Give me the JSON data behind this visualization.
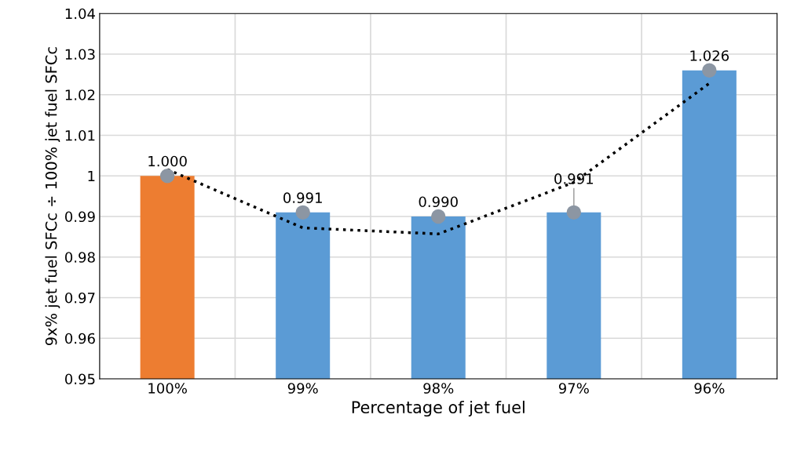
{
  "chart_data": {
    "type": "bar",
    "xlabel": "Percentage of jet fuel",
    "ylabel": "9x% jet fuel SFCc ÷ 100% jet fuel SFCc",
    "categories": [
      "100%",
      "99%",
      "98%",
      "97%",
      "96%"
    ],
    "series": [
      {
        "colors": [
          "#ed7d31",
          "#5b9bd5",
          "#5b9bd5",
          "#5b9bd5",
          "#5b9bd5"
        ],
        "values": [
          1.0,
          0.991,
          0.99,
          0.991,
          1.026
        ]
      },
      {
        "type": "scatter",
        "color": "#8c96a3",
        "x": [
          "100%",
          "99%",
          "98%",
          "97%",
          "96%"
        ],
        "values": [
          1.0,
          0.991,
          0.99,
          0.991,
          1.026
        ],
        "value_labels": [
          "1.000",
          "0.991",
          "0.990",
          "0.991",
          "1.026"
        ]
      },
      {
        "type": "line",
        "color": "#000000",
        "line_style": "dotted",
        "x": [
          "100%",
          "99%",
          "98%",
          "97%",
          "96%"
        ],
        "values": [
          1.0016,
          0.9872,
          0.9857,
          0.9984,
          1.0228
        ]
      }
    ],
    "ylim": [
      0.95,
      1.04
    ],
    "yticks": [
      0.95,
      0.96,
      0.97,
      0.98,
      0.99,
      1,
      1.01,
      1.02,
      1.03,
      1.04
    ],
    "grid": true
  }
}
